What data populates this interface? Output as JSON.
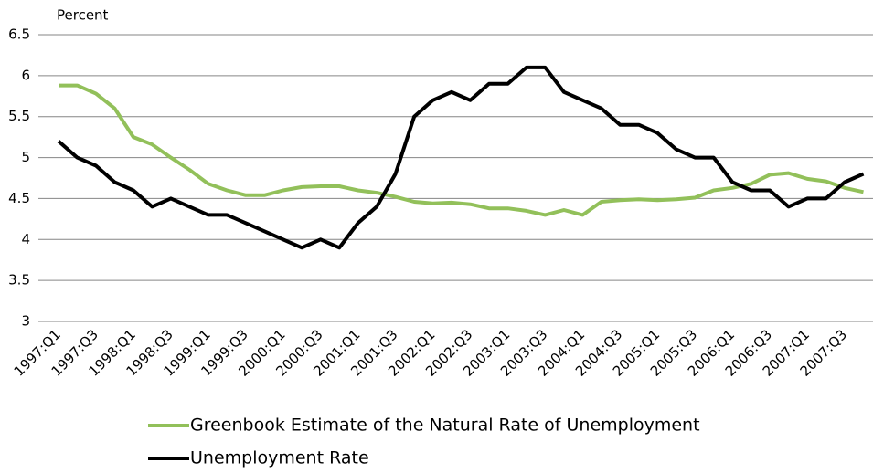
{
  "chart_data": {
    "type": "line",
    "y_label": "Percent",
    "categories": [
      "1997:Q1",
      null,
      "1997:Q3",
      null,
      "1998:Q1",
      null,
      "1998:Q3",
      null,
      "1999:Q1",
      null,
      "1999:Q3",
      null,
      "2000:Q1",
      null,
      "2000:Q3",
      null,
      "2001:Q1",
      null,
      "2001:Q3",
      null,
      "2002:Q1",
      null,
      "2002:Q3",
      null,
      "2003:Q1",
      null,
      "2003:Q3",
      null,
      "2004:Q1",
      null,
      "2004:Q3",
      null,
      "2005:Q1",
      null,
      "2005:Q3",
      null,
      "2006:Q1",
      null,
      "2006:Q3",
      null,
      "2007:Q1",
      null,
      "2007:Q3",
      null
    ],
    "series": [
      {
        "name": "Greenbook Estimate of the Natural Rate of Unemployment",
        "color": "#92c05a",
        "values": [
          5.88,
          5.88,
          5.78,
          5.6,
          5.25,
          5.16,
          5.0,
          4.85,
          4.68,
          4.6,
          4.54,
          4.54,
          4.6,
          4.64,
          4.65,
          4.65,
          4.6,
          4.57,
          4.52,
          4.46,
          4.44,
          4.45,
          4.43,
          4.38,
          4.38,
          4.35,
          4.3,
          4.36,
          4.3,
          4.46,
          4.48,
          4.49,
          4.48,
          4.49,
          4.51,
          4.6,
          4.63,
          4.68,
          4.79,
          4.81,
          4.74,
          4.71,
          4.63,
          4.58
        ]
      },
      {
        "name": "Unemployment Rate",
        "color": "#000000",
        "values": [
          5.2,
          5.0,
          4.9,
          4.7,
          4.6,
          4.4,
          4.5,
          4.4,
          4.3,
          4.3,
          4.2,
          4.1,
          4.0,
          3.9,
          4.0,
          3.9,
          4.2,
          4.4,
          4.8,
          5.5,
          5.7,
          5.8,
          5.7,
          5.9,
          5.9,
          6.1,
          6.1,
          5.8,
          5.7,
          5.6,
          5.4,
          5.4,
          5.3,
          5.1,
          5.0,
          5.0,
          4.7,
          4.6,
          4.6,
          4.4,
          4.5,
          4.5,
          4.7,
          4.8
        ]
      }
    ],
    "ylim": [
      3,
      6.5
    ],
    "yticks": [
      3,
      3.5,
      4,
      4.5,
      5,
      5.5,
      6,
      6.5
    ],
    "grid": true,
    "legend": "bottom"
  }
}
